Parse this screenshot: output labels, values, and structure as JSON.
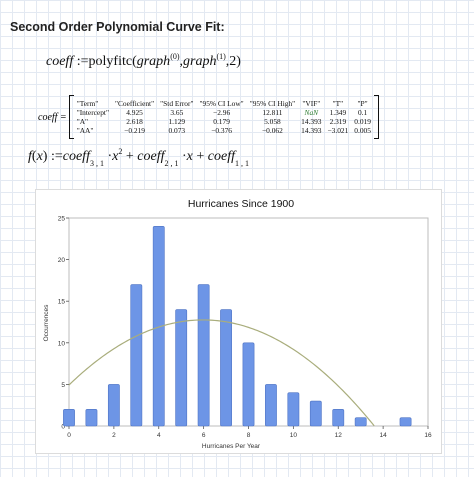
{
  "heading": "Second Order Polynomial Curve Fit:",
  "fit_call": {
    "lhs": "coeff",
    "assign": ":=",
    "func": "polyfitc",
    "arg1": "graph",
    "arg1_sup": "(0)",
    "arg2": "graph",
    "arg2_sup": "(1)",
    "arg3": "2"
  },
  "coeff_table": {
    "label": "coeff =",
    "rows": [
      [
        "\"Term\"",
        "\"Coefficient\"",
        "\"Std Error\"",
        "\"95% CI Low\"",
        "\"95% CI High\"",
        "\"VIF\"",
        "\"T\"",
        "\"P\""
      ],
      [
        "\"Intercept\"",
        "4.925",
        "3.65",
        "−2.96",
        "12.811",
        "NaN",
        "1.349",
        "0.1"
      ],
      [
        "\"A\"",
        "2.618",
        "1.129",
        "0.179",
        "5.058",
        "14.393",
        "2.319",
        "0.019"
      ],
      [
        "\"AA\"",
        "−0.219",
        "0.073",
        "−0.376",
        "−0.062",
        "14.393",
        "−3.021",
        "0.005"
      ]
    ]
  },
  "model": {
    "f": "f",
    "x": "x",
    "assign": ":=",
    "coeff": "coeff",
    "sub1": "3 , 1",
    "sub2": "2 , 1",
    "sub3": "1 , 1",
    "pow": "2"
  },
  "chart_data": {
    "type": "bar",
    "title": "Hurricanes Since 1900",
    "xlabel": "Hurricanes Per Year",
    "ylabel": "Occurrences",
    "xlim": [
      0,
      16
    ],
    "ylim": [
      0,
      25
    ],
    "x_ticks": [
      0,
      2,
      4,
      6,
      8,
      10,
      12,
      14,
      16
    ],
    "y_ticks": [
      0,
      5,
      10,
      15,
      20,
      25
    ],
    "x": [
      0,
      1,
      2,
      3,
      4,
      5,
      6,
      7,
      8,
      9,
      10,
      11,
      12,
      13,
      14,
      15
    ],
    "values": [
      2,
      2,
      5,
      17,
      24,
      14,
      17,
      14,
      10,
      5,
      4,
      3,
      2,
      1,
      0,
      1
    ],
    "fit_curve": {
      "intercept": 4.925,
      "a": 2.618,
      "aa": -0.219
    },
    "grid": false,
    "bar_color": "#6d95e6",
    "bar_stroke": "#4f74c4",
    "curve_color": "#a9ad7c"
  }
}
